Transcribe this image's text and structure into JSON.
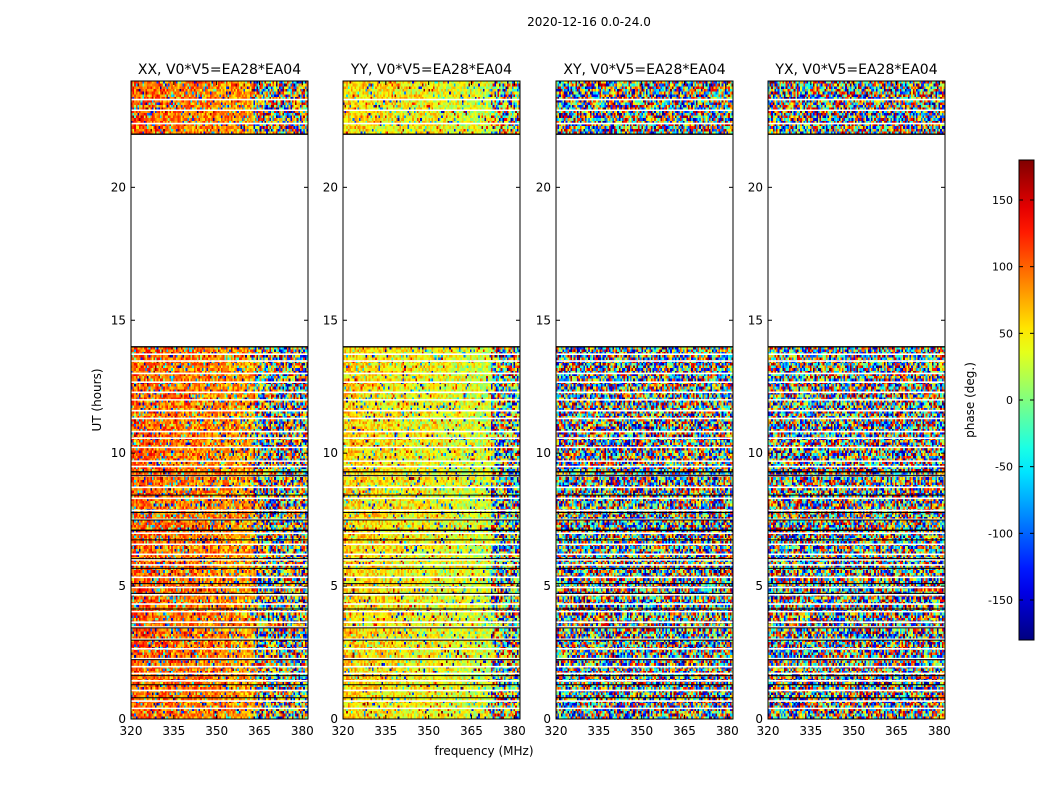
{
  "chart_data": {
    "type": "heatmap",
    "title": "2020-12-16 0.0-24.0",
    "xlabel": "frequency (MHz)",
    "ylabel": "UT (hours)",
    "colorbar_label": "phase (deg.)",
    "xlim": [
      320,
      382
    ],
    "ylim": [
      0,
      24
    ],
    "zlim": [
      -180,
      180
    ],
    "x_ticks": [
      320,
      335,
      350,
      365,
      380
    ],
    "y_ticks": [
      0,
      5,
      10,
      15,
      20
    ],
    "colorbar_ticks": [
      150,
      100,
      50,
      0,
      -50,
      -100,
      -150
    ],
    "colormap": "jet",
    "data_gap_hours": [
      14.0,
      22.0
    ],
    "panels": [
      {
        "name": "XX",
        "title": "XX, V0*V5=EA28*EA04",
        "coherence": 0.75,
        "mean_phase": 105,
        "coherent_until_mhz": 363
      },
      {
        "name": "YY",
        "title": "YY, V0*V5=EA28*EA04",
        "coherence": 0.85,
        "mean_phase": 60,
        "coherent_until_mhz": 372
      },
      {
        "name": "XY",
        "title": "XY, V0*V5=EA28*EA04",
        "coherence": 0.0,
        "mean_phase": 0,
        "coherent_until_mhz": 320
      },
      {
        "name": "YX",
        "title": "YX, V0*V5=EA28*EA04",
        "coherence": 0.0,
        "mean_phase": 0,
        "coherent_until_mhz": 320
      }
    ]
  }
}
